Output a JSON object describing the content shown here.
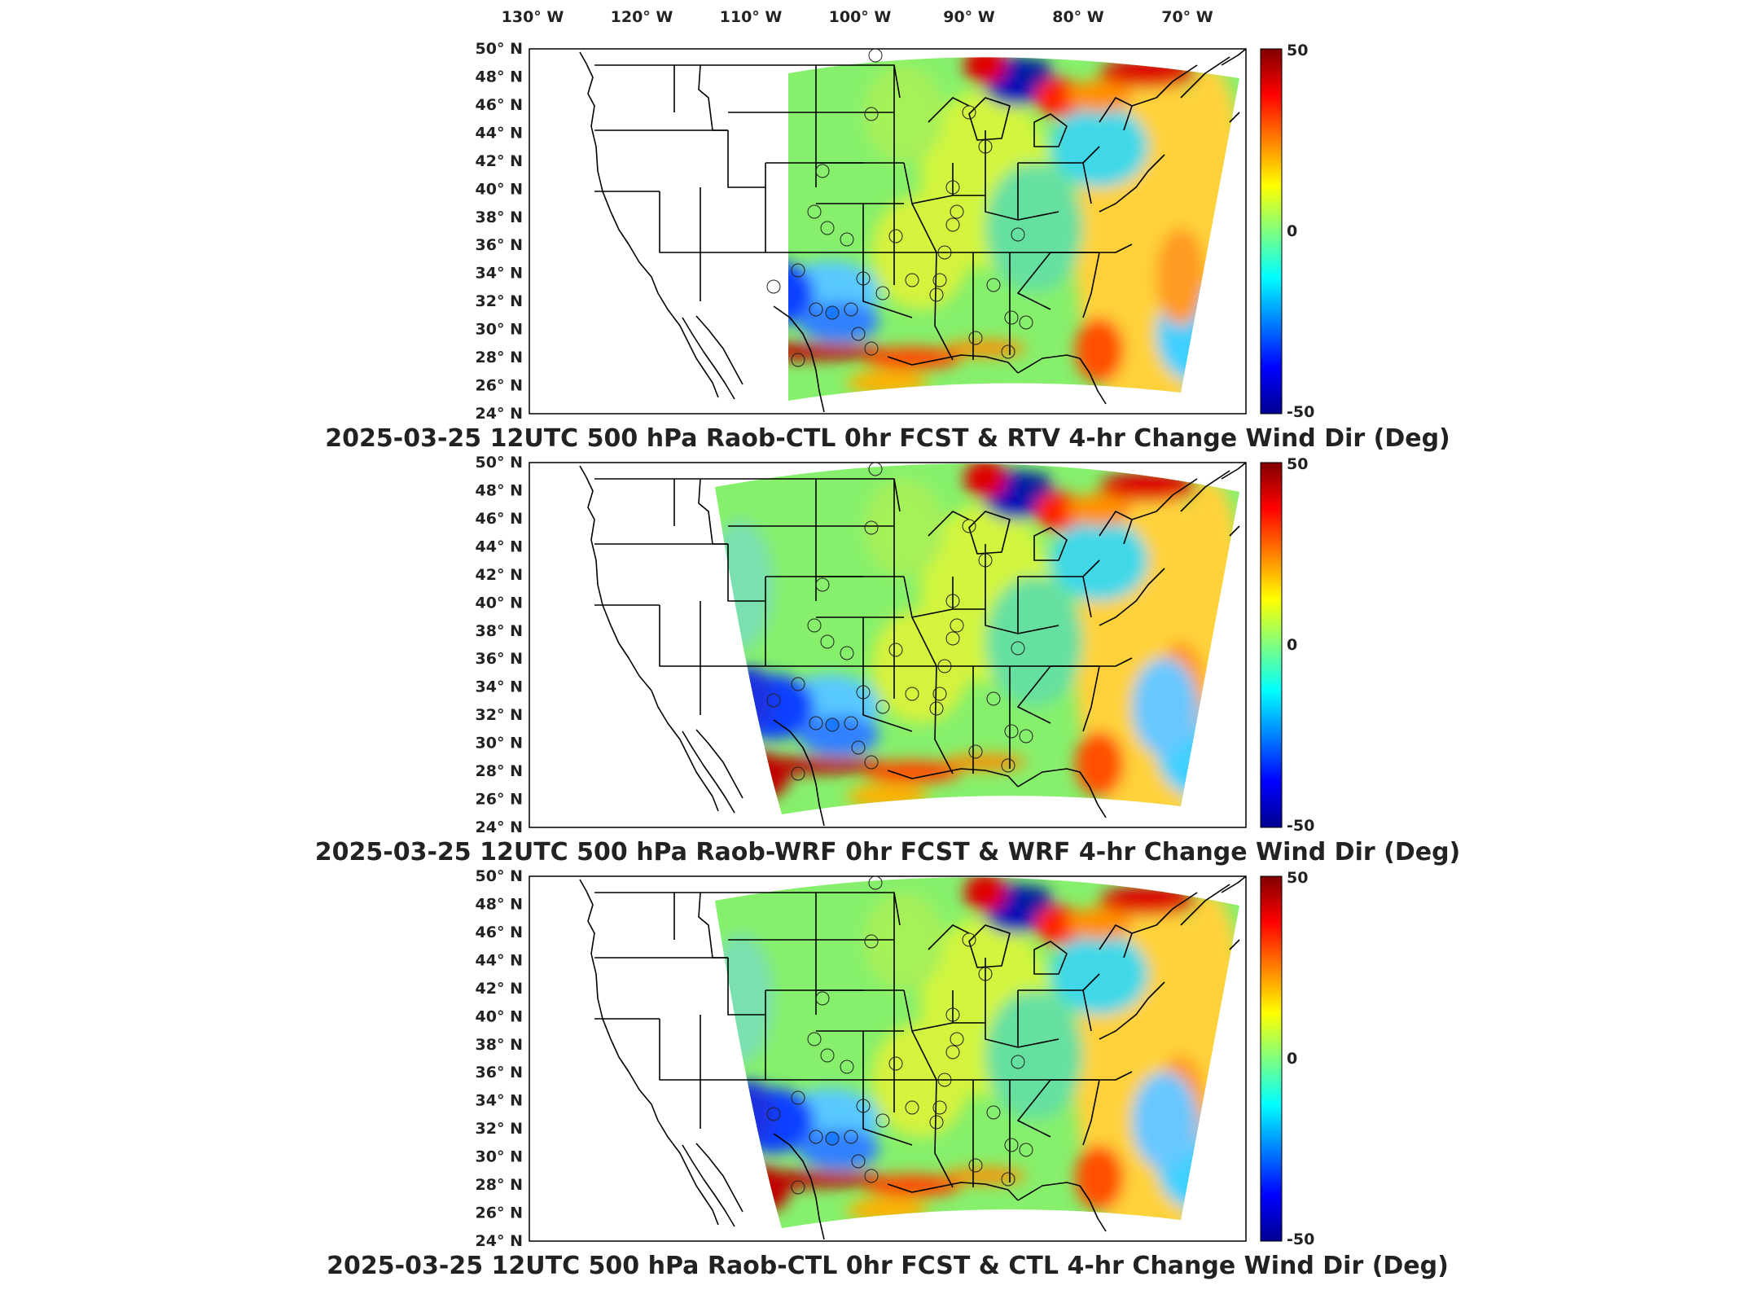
{
  "figure": {
    "lon_labels": [
      "130° W",
      "120° W",
      "110° W",
      "100° W",
      "90° W",
      "80° W",
      "70° W"
    ],
    "lat_labels": [
      "50° N",
      "48° N",
      "46° N",
      "44° N",
      "42° N",
      "40° N",
      "38° N",
      "36° N",
      "34° N",
      "32° N",
      "30° N",
      "28° N",
      "26° N",
      "24° N"
    ],
    "colorbar": {
      "max_label": "50",
      "mid_label": "0",
      "min_label": "-50",
      "range": [
        -50,
        50
      ],
      "colormap": "jet",
      "colors": [
        "#00008f",
        "#0000ff",
        "#00ffff",
        "#ffff00",
        "#ff0000",
        "#800000"
      ]
    }
  },
  "panels": [
    {
      "title": "2025-03-25 12UTC 500 hPa Raob-CTL 0hr FCST & RTV 4-hr Change Wind Dir (Deg)",
      "domain": "narrow"
    },
    {
      "title": "2025-03-25 12UTC 500 hPa Raob-WRF 0hr FCST & WRF 4-hr Change Wind Dir (Deg)",
      "domain": "wide"
    },
    {
      "title": "2025-03-25 12UTC 500 hPa Raob-CTL 0hr FCST & CTL 4-hr Change Wind Dir (Deg)",
      "domain": "wide"
    }
  ]
}
